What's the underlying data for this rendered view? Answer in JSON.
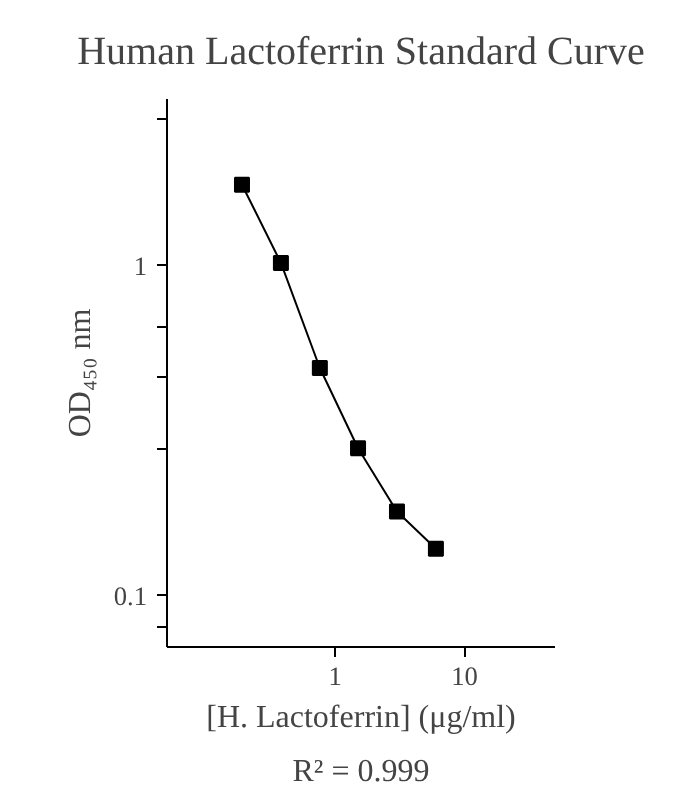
{
  "chart_data": {
    "type": "line",
    "title": "Human Lactoferrin Standard Curve",
    "xlabel": "[H. Lactoferrin] (μg/ml)",
    "ylabel": "OD₄₅₀ nm",
    "annotations": [
      "R² = 0.999"
    ],
    "x": [
      0.19,
      0.38,
      0.76,
      1.5,
      3.0,
      6.0
    ],
    "series": [
      {
        "color": "#000000",
        "values": [
          1.76,
          1.02,
          0.49,
          0.28,
          0.18,
          0.139
        ]
      }
    ],
    "log": "xy",
    "xlim": [
      0.05,
      50
    ],
    "ylim": [
      0.07,
      3.2
    ],
    "xticks": [
      1,
      10
    ],
    "yticks": [
      0.1,
      1,
      {
        "value": 0.08,
        "label": null
      },
      {
        "value": 0.28,
        "label": null
      },
      {
        "value": 0.46,
        "label": null
      },
      {
        "value": 0.65,
        "label": null
      },
      {
        "value": 2.8,
        "label": null
      }
    ],
    "grid": false,
    "marker": "square",
    "line_style": "solid"
  }
}
